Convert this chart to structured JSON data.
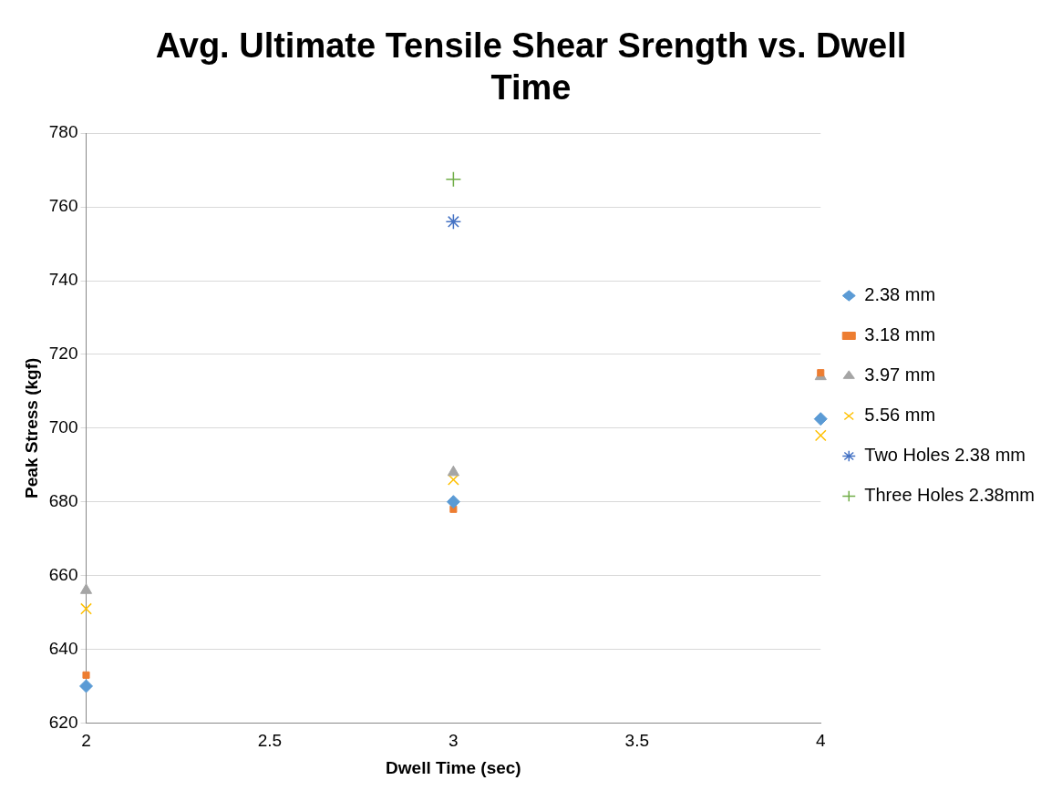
{
  "chart_data": {
    "type": "scatter",
    "title": "Avg. Ultimate Tensile Shear Srength vs. Dwell Time",
    "xlabel": "Dwell Time (sec)",
    "ylabel": "Peak Stress (kgf)",
    "xlim": [
      2,
      4
    ],
    "xticks": [
      2,
      2.5,
      3,
      3.5,
      4
    ],
    "ylim": [
      620,
      780
    ],
    "yticks": [
      620,
      640,
      660,
      680,
      700,
      720,
      740,
      760,
      780
    ],
    "grid": "y",
    "legend": "right",
    "series": [
      {
        "name": "2.38 mm",
        "color": "#5b9bd5",
        "marker": "diamond",
        "x": [
          2,
          3,
          4
        ],
        "values": [
          630,
          680,
          702.5
        ]
      },
      {
        "name": "3.18 mm",
        "color": "#ed7d31",
        "marker": "square",
        "x": [
          2,
          3,
          4
        ],
        "values": [
          633,
          678,
          715
        ]
      },
      {
        "name": "3.97 mm",
        "color": "#a5a5a5",
        "marker": "triangle",
        "x": [
          2,
          3,
          4
        ],
        "values": [
          656,
          688,
          714
        ]
      },
      {
        "name": "5.56 mm",
        "color": "#ffc000",
        "marker": "x",
        "x": [
          2,
          3,
          4
        ],
        "values": [
          651,
          686,
          698
        ]
      },
      {
        "name": "Two Holes 2.38 mm",
        "color": "#4472c4",
        "marker": "cross",
        "x": [
          3
        ],
        "values": [
          756
        ]
      },
      {
        "name": "Three Holes 2.38mm",
        "color": "#70ad47",
        "marker": "plus",
        "x": [
          3
        ],
        "values": [
          767.5
        ]
      }
    ]
  }
}
